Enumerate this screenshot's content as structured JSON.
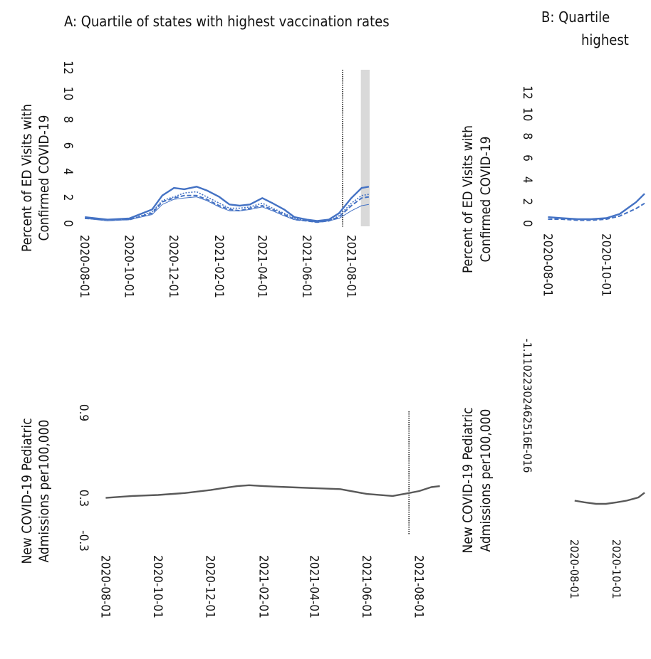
{
  "colors": {
    "ed_series": "#4472c4",
    "admissions_series": "#595959",
    "vline": "#000000",
    "shade": "#d9d9d9"
  },
  "panel_a": {
    "title": "A: Quartile of states with highest vaccination rates"
  },
  "panel_b": {
    "title_line1": "B: Quartile",
    "title_line2": "highest"
  },
  "chart_data": [
    {
      "id": "a-ed",
      "type": "line",
      "ylabel_line1": "Percent of ED Visits with",
      "ylabel_line2": "Confirmed COVID-19",
      "yticks": [
        "12",
        "10",
        "8",
        "6",
        "4",
        "2",
        "0"
      ],
      "xticks": [
        "2020-08-01",
        "2020-10-01",
        "2020-12-01",
        "2021-02-01",
        "2021-04-01",
        "2021-06-01",
        "2021-08-01"
      ],
      "ylim": [
        0,
        12
      ],
      "x": [
        "2020-08-01",
        "2020-09-01",
        "2020-10-01",
        "2020-11-01",
        "2020-11-15",
        "2020-12-01",
        "2020-12-15",
        "2021-01-01",
        "2021-01-15",
        "2021-02-01",
        "2021-02-15",
        "2021-03-01",
        "2021-03-15",
        "2021-04-01",
        "2021-04-15",
        "2021-05-01",
        "2021-05-15",
        "2021-06-01",
        "2021-06-15",
        "2021-07-01",
        "2021-07-15",
        "2021-08-01",
        "2021-08-15",
        "2021-08-25"
      ],
      "series": [
        {
          "style": "solid",
          "values": [
            0.5,
            0.3,
            0.4,
            1.1,
            2.2,
            2.8,
            2.7,
            2.9,
            2.6,
            2.1,
            1.5,
            1.4,
            1.5,
            2.0,
            1.6,
            1.1,
            0.5,
            0.3,
            0.2,
            0.3,
            0.8,
            2.0,
            2.8,
            2.9
          ]
        },
        {
          "style": "dashed",
          "values": [
            0.4,
            0.3,
            0.3,
            0.8,
            1.7,
            2.0,
            2.2,
            2.2,
            1.9,
            1.4,
            1.1,
            1.0,
            1.2,
            1.4,
            1.1,
            0.7,
            0.3,
            0.2,
            0.1,
            0.2,
            0.5,
            1.4,
            2.0,
            2.1
          ]
        },
        {
          "style": "dotted",
          "values": [
            0.4,
            0.3,
            0.3,
            0.9,
            1.8,
            2.1,
            2.4,
            2.5,
            2.1,
            1.6,
            1.2,
            1.2,
            1.3,
            1.6,
            1.2,
            0.8,
            0.4,
            0.2,
            0.1,
            0.2,
            0.6,
            1.6,
            2.2,
            2.3
          ]
        },
        {
          "style": "thin",
          "values": [
            0.4,
            0.2,
            0.3,
            0.7,
            1.5,
            1.9,
            2.0,
            2.1,
            1.8,
            1.3,
            1.0,
            1.0,
            1.1,
            1.3,
            1.0,
            0.6,
            0.3,
            0.2,
            0.1,
            0.2,
            0.4,
            1.0,
            1.4,
            1.5
          ]
        }
      ],
      "vline_date": "2021-07-20",
      "shade_range": [
        "2021-08-14",
        "2021-08-26"
      ]
    },
    {
      "id": "a-adm",
      "type": "line",
      "ylabel_line1": "New COVID-19 Pediatric",
      "ylabel_line2": "Admissions per100,000",
      "yticks": [
        "0.9",
        "0.3",
        "-0.3"
      ],
      "xticks": [
        "2020-08-01",
        "2020-10-01",
        "2020-12-01",
        "2021-02-01",
        "2021-04-01",
        "2021-06-01",
        "2021-08-01"
      ],
      "ylim": [
        -0.3,
        0.9
      ],
      "x": [
        "2020-08-01",
        "2020-09-01",
        "2020-10-01",
        "2020-11-01",
        "2020-12-01",
        "2020-12-15",
        "2021-01-01",
        "2021-01-15",
        "2021-02-01",
        "2021-03-01",
        "2021-04-01",
        "2021-05-01",
        "2021-06-01",
        "2021-07-01",
        "2021-07-20",
        "2021-08-01",
        "2021-08-15",
        "2021-08-25"
      ],
      "series": [
        {
          "style": "solid",
          "values": [
            0.03,
            0.05,
            0.06,
            0.08,
            0.11,
            0.13,
            0.15,
            0.16,
            0.15,
            0.14,
            0.13,
            0.12,
            0.07,
            0.05,
            0.08,
            0.1,
            0.14,
            0.15
          ]
        }
      ],
      "vline_date": "2021-07-20"
    },
    {
      "id": "b-ed",
      "type": "line",
      "ylabel_line1": "Percent of ED Visits with",
      "ylabel_line2": "Confirmed COVID-19",
      "yticks": [
        "12",
        "10",
        "8",
        "6",
        "4",
        "2",
        "0"
      ],
      "xticks": [
        "2020-08-01",
        "2020-10-01"
      ],
      "ylim": [
        0,
        12
      ],
      "x": [
        "2020-08-01",
        "2020-08-15",
        "2020-09-01",
        "2020-09-15",
        "2020-10-01",
        "2020-10-15",
        "2020-11-01",
        "2020-11-10"
      ],
      "series": [
        {
          "style": "solid",
          "values": [
            0.6,
            0.5,
            0.4,
            0.4,
            0.5,
            0.9,
            2.0,
            2.8
          ]
        },
        {
          "style": "dashed",
          "values": [
            0.4,
            0.4,
            0.3,
            0.3,
            0.4,
            0.7,
            1.4,
            1.9
          ]
        }
      ]
    },
    {
      "id": "b-adm",
      "type": "line",
      "ylabel_line1": "New COVID-19 Pediatric",
      "ylabel_line2": "Admissions per100,000",
      "yticks": [
        "-1.11022302462516E-016"
      ],
      "xticks": [
        "2020-08-01",
        "2020-10-01"
      ],
      "ylim": [
        -0.01,
        0.05
      ],
      "x": [
        "2020-08-01",
        "2020-08-15",
        "2020-09-01",
        "2020-09-15",
        "2020-10-01",
        "2020-10-15",
        "2020-11-01",
        "2020-11-10"
      ],
      "series": [
        {
          "style": "solid",
          "values": [
            0.004,
            0.003,
            0.002,
            0.002,
            0.003,
            0.004,
            0.006,
            0.009
          ]
        }
      ]
    }
  ]
}
